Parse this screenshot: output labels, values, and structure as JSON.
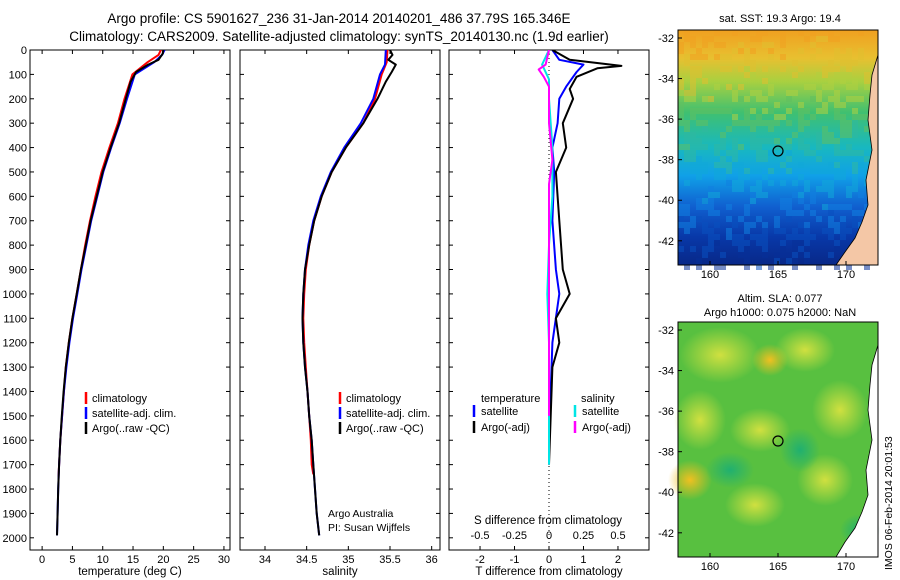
{
  "header": {
    "line1": "Argo profile: CS 5901627_236 31-Jan-2014 20140201_486 37.79S 165.346E",
    "line2": "Climatology: CARS2009. Satellite-adjusted climatology: synTS_20140130.nc (1.9d earlier)"
  },
  "colors": {
    "climatology": "#ff0000",
    "satellite": "#0000ff",
    "argo": "#000000",
    "sat_salinity": "#00e5e5",
    "argo_salinity": "#ff00ff"
  },
  "chart_data": [
    {
      "type": "line",
      "id": "temperature",
      "xlabel": "temperature (deg C)",
      "xlim": [
        -2,
        31
      ],
      "xticks": [
        0,
        5,
        10,
        15,
        20,
        25,
        30
      ],
      "ylim": [
        0,
        2050
      ],
      "yticks": [
        0,
        100,
        200,
        300,
        400,
        500,
        600,
        700,
        800,
        900,
        1000,
        1100,
        1200,
        1300,
        1400,
        1500,
        1600,
        1700,
        1800,
        1900,
        2000
      ],
      "legend": [
        "climatology",
        "satellite-adj. clim.",
        "Argo(..raw -QC)"
      ],
      "series": [
        {
          "name": "climatology",
          "color": "#ff0000",
          "points": [
            [
              19.6,
              0
            ],
            [
              19.2,
              20
            ],
            [
              17.4,
              50
            ],
            [
              14.9,
              100
            ],
            [
              13.6,
              200
            ],
            [
              12.5,
              300
            ],
            [
              11.1,
              400
            ],
            [
              9.8,
              500
            ],
            [
              8.8,
              600
            ],
            [
              7.9,
              700
            ],
            [
              7.1,
              800
            ],
            [
              6.4,
              900
            ],
            [
              5.7,
              1000
            ],
            [
              5.0,
              1100
            ],
            [
              4.4,
              1200
            ],
            [
              3.9,
              1300
            ],
            [
              3.6,
              1400
            ],
            [
              3.3,
              1500
            ],
            [
              3.0,
              1600
            ],
            [
              2.8,
              1700
            ],
            [
              2.7,
              1750
            ]
          ]
        },
        {
          "name": "satellite-adj. clim.",
          "color": "#0000ff",
          "points": [
            [
              20.2,
              0
            ],
            [
              19.8,
              20
            ],
            [
              18.5,
              50
            ],
            [
              15.3,
              100
            ],
            [
              14.0,
              200
            ],
            [
              12.8,
              300
            ],
            [
              11.4,
              400
            ],
            [
              10.1,
              500
            ],
            [
              9.1,
              600
            ],
            [
              8.1,
              700
            ],
            [
              7.3,
              800
            ],
            [
              6.5,
              900
            ],
            [
              5.8,
              1000
            ],
            [
              5.1,
              1100
            ],
            [
              4.5,
              1200
            ],
            [
              4.0,
              1300
            ],
            [
              3.6,
              1400
            ],
            [
              3.3,
              1500
            ],
            [
              3.0,
              1600
            ],
            [
              2.8,
              1700
            ],
            [
              2.65,
              1800
            ],
            [
              2.55,
              1900
            ],
            [
              2.45,
              1990
            ]
          ]
        },
        {
          "name": "Argo(..raw -QC)",
          "color": "#000000",
          "points": [
            [
              20.0,
              0
            ],
            [
              19.9,
              15
            ],
            [
              19.2,
              40
            ],
            [
              17.5,
              60
            ],
            [
              15.5,
              90
            ],
            [
              14.6,
              130
            ],
            [
              13.8,
              200
            ],
            [
              12.7,
              300
            ],
            [
              11.3,
              400
            ],
            [
              10.0,
              500
            ],
            [
              9.0,
              600
            ],
            [
              8.0,
              700
            ],
            [
              7.2,
              800
            ],
            [
              6.4,
              900
            ],
            [
              5.7,
              1000
            ],
            [
              5.0,
              1100
            ],
            [
              4.4,
              1200
            ],
            [
              3.9,
              1300
            ],
            [
              3.55,
              1400
            ],
            [
              3.25,
              1500
            ],
            [
              3.0,
              1600
            ],
            [
              2.8,
              1700
            ],
            [
              2.65,
              1800
            ],
            [
              2.55,
              1900
            ],
            [
              2.45,
              1990
            ]
          ]
        }
      ]
    },
    {
      "type": "line",
      "id": "salinity",
      "xlabel": "salinity",
      "xlim": [
        33.7,
        36.1
      ],
      "xticks": [
        34,
        34.5,
        35,
        35.5,
        36
      ],
      "ylim": [
        0,
        2050
      ],
      "legend": [
        "climatology",
        "satellite-adj. clim.",
        "Argo(..raw -QC)"
      ],
      "credit": [
        "Argo Australia",
        "PI: Susan Wijffels"
      ],
      "series": [
        {
          "name": "climatology",
          "color": "#ff0000",
          "points": [
            [
              35.47,
              0
            ],
            [
              35.46,
              50
            ],
            [
              35.4,
              100
            ],
            [
              35.32,
              200
            ],
            [
              35.18,
              300
            ],
            [
              34.97,
              400
            ],
            [
              34.8,
              500
            ],
            [
              34.68,
              600
            ],
            [
              34.59,
              700
            ],
            [
              34.53,
              800
            ],
            [
              34.49,
              900
            ],
            [
              34.47,
              1000
            ],
            [
              34.46,
              1100
            ],
            [
              34.47,
              1200
            ],
            [
              34.49,
              1300
            ],
            [
              34.51,
              1400
            ],
            [
              34.53,
              1500
            ],
            [
              34.55,
              1600
            ],
            [
              34.56,
              1700
            ],
            [
              34.58,
              1740
            ]
          ]
        },
        {
          "name": "satellite-adj. clim.",
          "color": "#0000ff",
          "points": [
            [
              35.45,
              0
            ],
            [
              35.44,
              60
            ],
            [
              35.38,
              100
            ],
            [
              35.3,
              200
            ],
            [
              35.15,
              300
            ],
            [
              34.95,
              400
            ],
            [
              34.79,
              500
            ],
            [
              34.67,
              600
            ],
            [
              34.58,
              700
            ],
            [
              34.52,
              800
            ],
            [
              34.48,
              900
            ],
            [
              34.46,
              1000
            ],
            [
              34.45,
              1100
            ],
            [
              34.46,
              1200
            ],
            [
              34.48,
              1300
            ],
            [
              34.51,
              1400
            ],
            [
              34.53,
              1500
            ],
            [
              34.56,
              1600
            ],
            [
              34.58,
              1700
            ],
            [
              34.6,
              1800
            ],
            [
              34.62,
              1900
            ],
            [
              34.65,
              1990
            ]
          ]
        },
        {
          "name": "Argo(..raw -QC)",
          "color": "#000000",
          "points": [
            [
              35.5,
              0
            ],
            [
              35.53,
              20
            ],
            [
              35.48,
              40
            ],
            [
              35.57,
              60
            ],
            [
              35.52,
              90
            ],
            [
              35.45,
              130
            ],
            [
              35.35,
              200
            ],
            [
              35.18,
              300
            ],
            [
              34.97,
              400
            ],
            [
              34.8,
              500
            ],
            [
              34.68,
              600
            ],
            [
              34.59,
              700
            ],
            [
              34.53,
              800
            ],
            [
              34.48,
              900
            ],
            [
              34.46,
              1000
            ],
            [
              34.45,
              1100
            ],
            [
              34.46,
              1200
            ],
            [
              34.48,
              1300
            ],
            [
              34.51,
              1400
            ],
            [
              34.53,
              1500
            ],
            [
              34.56,
              1600
            ],
            [
              34.58,
              1700
            ],
            [
              34.6,
              1800
            ],
            [
              34.62,
              1900
            ],
            [
              34.65,
              1990
            ]
          ]
        }
      ]
    },
    {
      "type": "line",
      "id": "difference",
      "xlabel": "T difference from climatology",
      "xlim": [
        -2.9,
        2.9
      ],
      "xticks": [
        -2,
        -1,
        0,
        1,
        2
      ],
      "ylim": [
        0,
        2050
      ],
      "top_label": "S difference from climatology",
      "top_ticks": [
        "-0.5",
        "-0.25",
        "0",
        "0.25",
        "0.5"
      ],
      "top_tick_positions": [
        -2,
        -1,
        0,
        1,
        2
      ],
      "legend_left": {
        "heading": "temperature",
        "items": [
          "satellite",
          "Argo(-adj)"
        ]
      },
      "legend_right": {
        "heading": "salinity",
        "items": [
          "satellite",
          "Argo(-adj)"
        ]
      },
      "series": [
        {
          "name": "satellite",
          "color": "#0000ff",
          "points": [
            [
              0.1,
              0
            ],
            [
              0.3,
              40
            ],
            [
              1.0,
              60
            ],
            [
              0.8,
              90
            ],
            [
              0.5,
              150
            ],
            [
              0.3,
              200
            ],
            [
              0.25,
              300
            ],
            [
              0.1,
              400
            ],
            [
              0.15,
              500
            ],
            [
              0.1,
              700
            ],
            [
              0.2,
              900
            ],
            [
              0.3,
              1000
            ],
            [
              0.1,
              1200
            ],
            [
              0.05,
              1400
            ],
            [
              0.0,
              1600
            ],
            [
              0.0,
              1700
            ]
          ]
        },
        {
          "name": "Argo(-adj)",
          "color": "#000000",
          "points": [
            [
              0.1,
              0
            ],
            [
              0.6,
              40
            ],
            [
              2.1,
              65
            ],
            [
              1.4,
              75
            ],
            [
              0.8,
              110
            ],
            [
              0.6,
              160
            ],
            [
              0.7,
              200
            ],
            [
              0.4,
              300
            ],
            [
              0.5,
              400
            ],
            [
              0.2,
              500
            ],
            [
              0.3,
              700
            ],
            [
              0.4,
              900
            ],
            [
              0.6,
              1000
            ],
            [
              0.2,
              1100
            ],
            [
              0.3,
              1200
            ],
            [
              0.1,
              1300
            ],
            [
              0.05,
              1500
            ],
            [
              0.0,
              1700
            ]
          ]
        },
        {
          "name": "satellite",
          "color": "#00e5e5",
          "points": [
            [
              0.0,
              0
            ],
            [
              -0.2,
              60
            ],
            [
              0.0,
              120
            ],
            [
              0.0,
              200
            ],
            [
              0.1,
              400
            ],
            [
              0.1,
              600
            ],
            [
              0.0,
              800
            ],
            [
              -0.05,
              1000
            ],
            [
              0.0,
              1200
            ],
            [
              0.0,
              1500
            ],
            [
              0.0,
              1700
            ]
          ]
        },
        {
          "name": "Argo(-adj)",
          "color": "#ff00ff",
          "points": [
            [
              0.0,
              0
            ],
            [
              -0.1,
              60
            ],
            [
              -0.3,
              80
            ],
            [
              -0.15,
              110
            ],
            [
              0.0,
              150
            ],
            [
              0.0,
              300
            ],
            [
              0.1,
              450
            ],
            [
              0.0,
              550
            ],
            [
              0.0,
              1200
            ],
            [
              0.0,
              1500
            ]
          ]
        }
      ]
    }
  ],
  "maps": {
    "sst": {
      "title": "sat. SST: 19.3 Argo: 19.4",
      "yticks": [
        "-32",
        "-34",
        "-36",
        "-38",
        "-40",
        "-42"
      ],
      "xticks": [
        "160",
        "165",
        "170"
      ]
    },
    "sla": {
      "title1": "Altim. SLA: 0.077",
      "title2": "Argo h1000: 0.075 h2000: NaN",
      "yticks": [
        "-32",
        "-34",
        "-36",
        "-38",
        "-40",
        "-42"
      ],
      "xticks": [
        "160",
        "165",
        "170"
      ]
    },
    "side_label": "IMOS 06-Feb-2014 20:01:53"
  }
}
